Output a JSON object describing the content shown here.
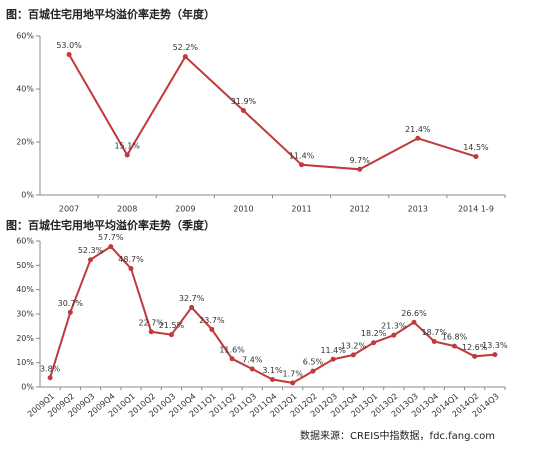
{
  "chart_data": [
    {
      "type": "line",
      "title": "图：百城住宅用地平均溢价率走势（年度）",
      "categories": [
        "2007",
        "2008",
        "2009",
        "2010",
        "2011",
        "2012",
        "2013",
        "2014 1-9"
      ],
      "values": [
        53.0,
        15.1,
        52.2,
        31.9,
        11.4,
        9.7,
        21.4,
        14.5
      ],
      "value_labels": [
        "53.0%",
        "15.1%",
        "52.2%",
        "31.9%",
        "11.4%",
        "9.7%",
        "21.4%",
        "14.5%"
      ],
      "color": "#c0393b",
      "ylim": [
        0,
        60
      ],
      "yticks": [
        {
          "value": 0,
          "label": "0%"
        },
        {
          "value": 20,
          "label": "20%"
        },
        {
          "value": 40,
          "label": "40%"
        },
        {
          "value": 60,
          "label": "60%"
        }
      ]
    },
    {
      "type": "line",
      "title": "图：百城住宅用地平均溢价率走势（季度）",
      "categories": [
        "2009Q1",
        "2009Q2",
        "2009Q3",
        "2009Q4",
        "2010Q1",
        "2010Q2",
        "2010Q3",
        "2010Q4",
        "2011Q1",
        "2011Q2",
        "2011Q3",
        "2011Q4",
        "2012Q1",
        "2012Q2",
        "2012Q3",
        "2012Q4",
        "2013Q1",
        "2013Q2",
        "2013Q3",
        "2013Q4",
        "2014Q1",
        "2014Q2",
        "2014Q3"
      ],
      "values": [
        3.8,
        30.7,
        52.3,
        57.7,
        48.7,
        22.7,
        21.5,
        32.7,
        23.7,
        11.6,
        7.4,
        3.1,
        1.7,
        6.5,
        11.4,
        13.2,
        18.2,
        21.3,
        26.6,
        18.7,
        16.8,
        12.6,
        13.3
      ],
      "value_labels": [
        "3.8%",
        "30.7%",
        "52.3%",
        "57.7%",
        "48.7%",
        "22.7%",
        "21.5%",
        "32.7%",
        "23.7%",
        "11.6%",
        "7.4%",
        "3.1%",
        "1.7%",
        "6.5%",
        "11.4%",
        "13.2%",
        "18.2%",
        "21.3%",
        "26.6%",
        "18.7%",
        "16.8%",
        "12.6%",
        "13.3%"
      ],
      "color": "#c0393b",
      "ylim": [
        0,
        60
      ],
      "yticks": [
        {
          "value": 0,
          "label": "0%"
        },
        {
          "value": 10,
          "label": "10%"
        },
        {
          "value": 20,
          "label": "20%"
        },
        {
          "value": 30,
          "label": "30%"
        },
        {
          "value": 40,
          "label": "40%"
        },
        {
          "value": 50,
          "label": "50%"
        },
        {
          "value": 60,
          "label": "60%"
        }
      ]
    }
  ],
  "source": "数据来源：CREIS中指数据，fdc.fang.com"
}
